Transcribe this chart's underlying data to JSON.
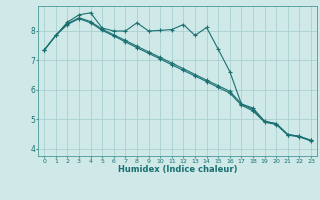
{
  "xlabel": "Humidex (Indice chaleur)",
  "background_color": "#cfe8e8",
  "grid_color": "#aad0d0",
  "line_color": "#1a7070",
  "xlim": [
    -0.5,
    23.5
  ],
  "ylim": [
    3.75,
    8.85
  ],
  "yticks": [
    4,
    5,
    6,
    7,
    8
  ],
  "xticks": [
    0,
    1,
    2,
    3,
    4,
    5,
    6,
    7,
    8,
    9,
    10,
    11,
    12,
    13,
    14,
    15,
    16,
    17,
    18,
    19,
    20,
    21,
    22,
    23
  ],
  "series1_x": [
    0,
    1,
    2,
    3,
    4,
    5,
    6,
    7,
    8,
    9,
    10,
    11,
    12,
    13,
    14,
    15,
    16,
    17,
    18,
    19,
    20,
    21,
    22,
    23
  ],
  "series1_y": [
    7.35,
    7.85,
    8.3,
    8.55,
    8.62,
    8.1,
    8.0,
    8.0,
    8.28,
    8.0,
    8.02,
    8.05,
    8.22,
    7.85,
    8.12,
    7.38,
    6.62,
    5.52,
    5.38,
    4.93,
    4.85,
    4.48,
    4.42,
    4.28
  ],
  "series2_x": [
    0,
    1,
    2,
    3,
    4,
    5,
    6,
    7,
    8,
    9,
    10,
    11,
    12,
    13,
    14,
    15,
    16,
    17,
    18,
    19,
    20,
    21,
    22,
    23
  ],
  "series2_y": [
    7.35,
    7.85,
    8.25,
    8.45,
    8.32,
    8.06,
    7.87,
    7.68,
    7.48,
    7.29,
    7.1,
    6.91,
    6.72,
    6.52,
    6.33,
    6.14,
    5.95,
    5.52,
    5.33,
    4.93,
    4.85,
    4.48,
    4.42,
    4.28
  ],
  "series3_x": [
    0,
    1,
    2,
    3,
    4,
    5,
    6,
    7,
    8,
    9,
    10,
    11,
    12,
    13,
    14,
    15,
    16,
    17,
    18,
    19,
    20,
    21,
    22,
    23
  ],
  "series3_y": [
    7.35,
    7.85,
    8.22,
    8.42,
    8.28,
    8.02,
    7.83,
    7.63,
    7.43,
    7.24,
    7.05,
    6.85,
    6.66,
    6.47,
    6.28,
    6.08,
    5.89,
    5.48,
    5.28,
    4.9,
    4.82,
    4.46,
    4.4,
    4.26
  ]
}
